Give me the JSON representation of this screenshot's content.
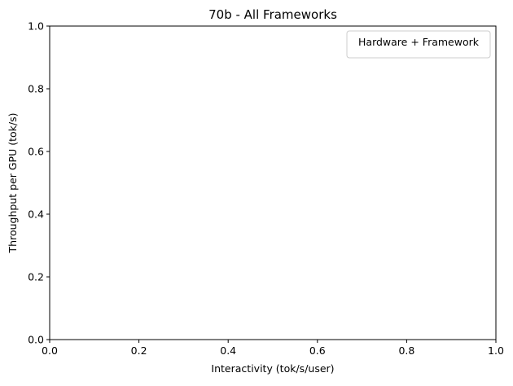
{
  "chart_data": {
    "type": "scatter",
    "title": "70b - All Frameworks",
    "xlabel": "Interactivity (tok/s/user)",
    "ylabel": "Throughput per GPU (tok/s)",
    "xlim": [
      0.0,
      1.0
    ],
    "ylim": [
      0.0,
      1.0
    ],
    "xticks": [
      "0.0",
      "0.2",
      "0.4",
      "0.6",
      "0.8",
      "1.0"
    ],
    "yticks": [
      "0.0",
      "0.2",
      "0.4",
      "0.6",
      "0.8",
      "1.0"
    ],
    "grid": false,
    "legend": {
      "title": "Hardware + Framework",
      "placement": "top-right",
      "entries": []
    },
    "series": []
  }
}
